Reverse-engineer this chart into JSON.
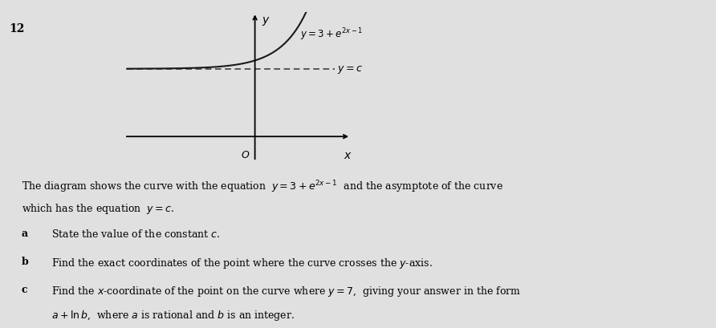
{
  "bg_color": "#c8c8c8",
  "paper_color": "#e0e0e0",
  "question_number": "12",
  "graph": {
    "x_disp_min": -2.5,
    "x_disp_max": 1.8,
    "y_disp_min": -1.2,
    "y_disp_max": 5.5,
    "asym_y": 3.0,
    "asym_x_start": -2.4,
    "asym_x_end": 1.5,
    "curve_x_min": -2.4,
    "curve_x_max": 1.3,
    "curve_color": "#1a1a1a",
    "axis_color": "#111111",
    "asymptote_color": "#333333",
    "curve_label": "$y = 3 + e^{2x-1}$",
    "asymptote_label": "$y = c$",
    "x_label": "$x$",
    "y_label": "$y$",
    "origin_label": "$O$"
  },
  "line1": "The diagram shows the curve with the equation  $y=3+e^{2x-1}$  and the asymptote of the curve",
  "line2": "which has the equation  $y=c$.",
  "part_a_label": "a",
  "part_a_text": "State the value of the constant $c$.",
  "part_b_label": "b",
  "part_b_text": "Find the exact coordinates of the point where the curve crosses the $y$-axis.",
  "part_c_label": "c",
  "part_c_text": "Find the $x$-coordinate of the point on the curve where $y=7$,  giving your answer in the form",
  "part_c_text2": "$a+\\ln b$,  where $a$ is rational and $b$ is an integer."
}
